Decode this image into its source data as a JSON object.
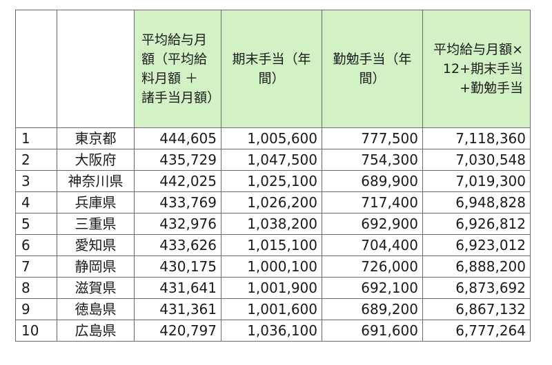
{
  "headers": {
    "rank": "",
    "prefecture": "",
    "avg_monthly": "平均給与月額（平均給料月額 ＋ 諸手当月額）",
    "term_end": "期末手当（年間）",
    "diligence": "勤勉手当（年間）",
    "total": "平均給与月額×12+期末手当+勤勉手当"
  },
  "rows": [
    {
      "rank": "1",
      "prefecture": "東京都",
      "avg_monthly": "444,605",
      "term_end": "1,005,600",
      "diligence": "777,500",
      "total": "7,118,360"
    },
    {
      "rank": "2",
      "prefecture": "大阪府",
      "avg_monthly": "435,729",
      "term_end": "1,047,500",
      "diligence": "754,300",
      "total": "7,030,548"
    },
    {
      "rank": "3",
      "prefecture": "神奈川県",
      "avg_monthly": "442,025",
      "term_end": "1,025,100",
      "diligence": "689,900",
      "total": "7,019,300"
    },
    {
      "rank": "4",
      "prefecture": "兵庫県",
      "avg_monthly": "433,769",
      "term_end": "1,026,200",
      "diligence": "717,400",
      "total": "6,948,828"
    },
    {
      "rank": "5",
      "prefecture": "三重県",
      "avg_monthly": "432,976",
      "term_end": "1,038,200",
      "diligence": "692,900",
      "total": "6,926,812"
    },
    {
      "rank": "6",
      "prefecture": "愛知県",
      "avg_monthly": "433,626",
      "term_end": "1,015,100",
      "diligence": "704,400",
      "total": "6,923,012"
    },
    {
      "rank": "7",
      "prefecture": "静岡県",
      "avg_monthly": "430,175",
      "term_end": "1,000,100",
      "diligence": "726,000",
      "total": "6,888,200"
    },
    {
      "rank": "8",
      "prefecture": "滋賀県",
      "avg_monthly": "431,641",
      "term_end": "1,001,900",
      "diligence": "692,100",
      "total": "6,873,692"
    },
    {
      "rank": "9",
      "prefecture": "徳島県",
      "avg_monthly": "431,361",
      "term_end": "1,001,600",
      "diligence": "689,200",
      "total": "6,867,132"
    },
    {
      "rank": "10",
      "prefecture": "広島県",
      "avg_monthly": "420,797",
      "term_end": "1,036,100",
      "diligence": "691,600",
      "total": "6,777,264"
    }
  ],
  "colors": {
    "header_highlight": "#d2f2c6",
    "grid_line": "#6a6a6a"
  }
}
